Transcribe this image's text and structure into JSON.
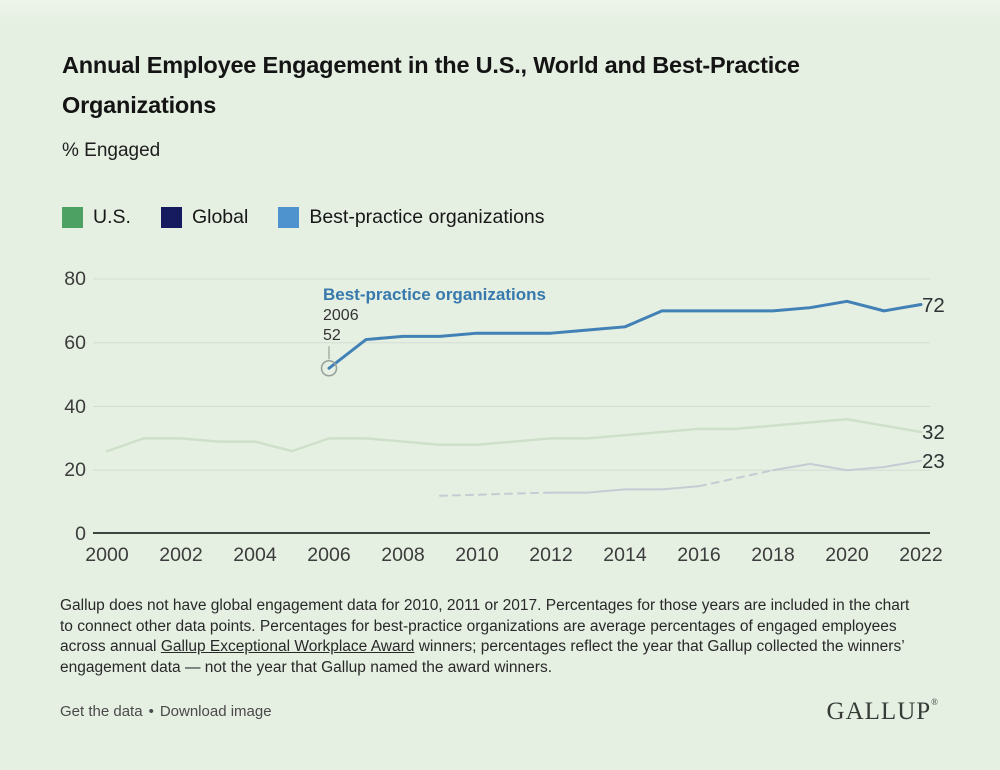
{
  "page": {
    "background": "#e5efe2",
    "gridline_color": "#d4ddd1",
    "axis_color": "#3e443f",
    "tick_color": "#3c3c3c"
  },
  "header": {
    "title": "Annual Employee Engagement in the U.S., World and Best-Practice Organizations",
    "title_line1": "Annual Employee Engagement in the U.S., World and Best-Practice",
    "title_line2": "Organizations",
    "subtitle": "% Engaged"
  },
  "legend": {
    "items": [
      {
        "label": "U.S.",
        "color": "#4DA263"
      },
      {
        "label": "Global",
        "color": "#161B60"
      },
      {
        "label": "Best-practice organizations",
        "color": "#4E93CE"
      }
    ]
  },
  "chart_data": {
    "type": "line",
    "title": "Annual Employee Engagement in the U.S., World and Best-Practice Organizations",
    "ylabel": "% Engaged",
    "xlabel": "",
    "grid": "horizontal",
    "legend_position": "top-left",
    "ylim": [
      0,
      80
    ],
    "yticks": [
      0,
      20,
      40,
      60,
      80
    ],
    "x": [
      2000,
      2001,
      2002,
      2003,
      2004,
      2005,
      2006,
      2007,
      2008,
      2009,
      2010,
      2011,
      2012,
      2013,
      2014,
      2015,
      2016,
      2017,
      2018,
      2019,
      2020,
      2021,
      2022
    ],
    "x_tick_labels": [
      "2000",
      "2002",
      "2004",
      "2006",
      "2008",
      "2010",
      "2012",
      "2014",
      "2016",
      "2018",
      "2020",
      "2022"
    ],
    "series": [
      {
        "name": "U.S.",
        "legend_color": "#4DA263",
        "line_color": "#cfe0ca",
        "line_width": 2.5,
        "values": [
          26,
          30,
          30,
          29,
          29,
          26,
          30,
          30,
          29,
          28,
          28,
          29,
          30,
          30,
          31,
          32,
          33,
          33,
          34,
          35,
          36,
          34,
          32
        ],
        "end_label": "32"
      },
      {
        "name": "Global",
        "legend_color": "#161B60",
        "line_color": "#c5ccd3",
        "line_width": 2,
        "values": [
          null,
          null,
          null,
          null,
          null,
          null,
          null,
          null,
          null,
          12,
          12.3,
          12.7,
          13,
          13,
          14,
          14,
          15,
          17.5,
          20,
          22,
          20,
          21,
          23
        ],
        "interpolated_years": [
          2010,
          2011,
          2017
        ],
        "dashed_year_ranges": [
          [
            2009,
            2012
          ],
          [
            2016,
            2018
          ]
        ],
        "end_label": "23"
      },
      {
        "name": "Best-practice organizations",
        "legend_color": "#4E93CE",
        "line_color": "#4281B6",
        "line_width": 3,
        "values": [
          null,
          null,
          null,
          null,
          null,
          null,
          52,
          61,
          62,
          62,
          63,
          63,
          63,
          64,
          65,
          70,
          70,
          70,
          70,
          71,
          73,
          70,
          72
        ],
        "end_label": "72",
        "marker": {
          "year": 2006,
          "value": 52,
          "style": "open-circle",
          "stroke": "#96a098"
        }
      }
    ],
    "annotation": {
      "series_label": "Best-practice organizations",
      "year_label": "2006",
      "value_label": "52"
    }
  },
  "footnote": {
    "before_link": "Gallup does not have global engagement data for 2010, 2011 or 2017. Percentages for those years are included in the chart to connect other data points. Percentages for best-practice organizations are average percentages of engaged employees across annual ",
    "link_text": "Gallup Exceptional Workplace Award",
    "after_link": " winners; percentages reflect the year that Gallup collected the winners’ engagement data — not the year that Gallup named the award winners."
  },
  "footer": {
    "link1": "Get the data",
    "separator": "•",
    "link2": "Download image",
    "brand": "GALLUP",
    "brand_mark": "®"
  }
}
